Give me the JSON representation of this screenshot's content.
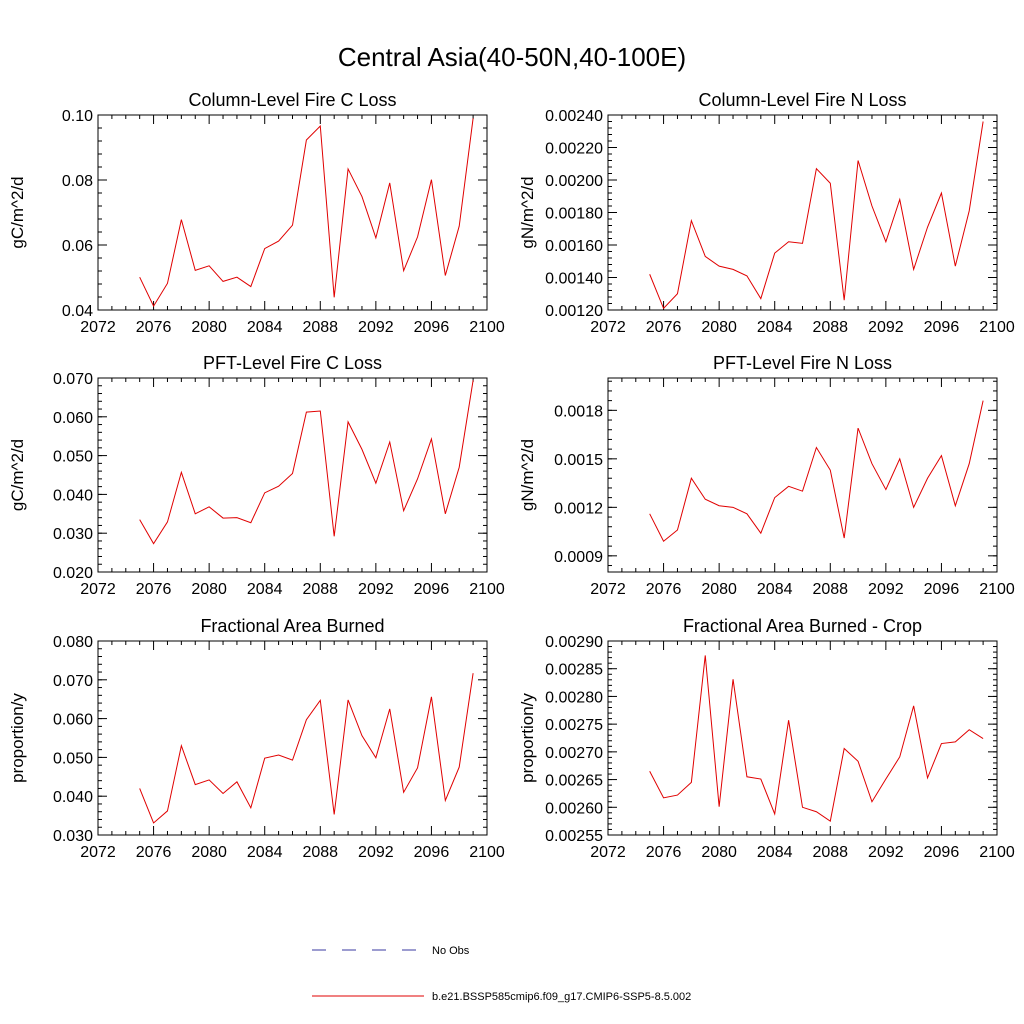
{
  "figure": {
    "title": "Central Asia(40-50N,40-100E)",
    "legend": [
      {
        "label": "No Obs",
        "color": "#3a3aa0",
        "style": "dashed"
      },
      {
        "label": "b.e21.BSSP585cmip6.f09_g17.CMIP6-SSP5-8.5.002",
        "color": "#e00000",
        "style": "solid"
      }
    ]
  },
  "chart_data": [
    {
      "type": "line",
      "title": "Column-Level Fire C Loss",
      "xlabel": "",
      "ylabel": "gC/m^2/d",
      "xlim": [
        2072,
        2100
      ],
      "ylim": [
        0.04,
        0.1
      ],
      "xticks": [
        2072,
        2076,
        2080,
        2084,
        2088,
        2092,
        2096,
        2100
      ],
      "xtick_labels": [
        "2072",
        "2076",
        "2080",
        "2084",
        "2088",
        "2092",
        "2096",
        "2100"
      ],
      "yticks": [
        0.04,
        0.06,
        0.08,
        0.1
      ],
      "ytick_labels": [
        "0.04",
        "0.06",
        "0.08",
        "0.10"
      ],
      "x": [
        2075,
        2076,
        2077,
        2078,
        2079,
        2080,
        2081,
        2082,
        2083,
        2084,
        2085,
        2086,
        2087,
        2088,
        2089,
        2090,
        2091,
        2092,
        2093,
        2094,
        2095,
        2096,
        2097,
        2098,
        2099
      ],
      "series": [
        {
          "color": "#e00000",
          "values": [
            0.0501,
            0.0412,
            0.0482,
            0.0678,
            0.0522,
            0.0536,
            0.0488,
            0.0501,
            0.0472,
            0.0589,
            0.0612,
            0.0661,
            0.0923,
            0.0966,
            0.0439,
            0.0834,
            0.0749,
            0.0622,
            0.0791,
            0.0521,
            0.0625,
            0.0801,
            0.0506,
            0.0658,
            0.099
          ]
        }
      ]
    },
    {
      "type": "line",
      "title": "Column-Level Fire N Loss",
      "xlabel": "",
      "ylabel": "gN/m^2/d",
      "xlim": [
        2072,
        2100
      ],
      "ylim": [
        0.0012,
        0.0024
      ],
      "xticks": [
        2072,
        2076,
        2080,
        2084,
        2088,
        2092,
        2096,
        2100
      ],
      "xtick_labels": [
        "2072",
        "2076",
        "2080",
        "2084",
        "2088",
        "2092",
        "2096",
        "2100"
      ],
      "yticks": [
        0.0012,
        0.0014,
        0.0016,
        0.0018,
        0.002,
        0.0022,
        0.0024
      ],
      "ytick_labels": [
        "0.00120",
        "0.00140",
        "0.00160",
        "0.00180",
        "0.00200",
        "0.00220",
        "0.00240"
      ],
      "x": [
        2075,
        2076,
        2077,
        2078,
        2079,
        2080,
        2081,
        2082,
        2083,
        2084,
        2085,
        2086,
        2087,
        2088,
        2089,
        2090,
        2091,
        2092,
        2093,
        2094,
        2095,
        2096,
        2097,
        2098,
        2099
      ],
      "series": [
        {
          "color": "#e00000",
          "values": [
            0.00142,
            0.00121,
            0.0013,
            0.00175,
            0.00153,
            0.00147,
            0.00145,
            0.00141,
            0.00127,
            0.00155,
            0.00162,
            0.00161,
            0.00207,
            0.00198,
            0.00126,
            0.00212,
            0.00184,
            0.00162,
            0.00188,
            0.00145,
            0.00171,
            0.00192,
            0.00147,
            0.00181,
            0.00236
          ]
        }
      ]
    },
    {
      "type": "line",
      "title": "PFT-Level Fire C Loss",
      "xlabel": "",
      "ylabel": "gC/m^2/d",
      "xlim": [
        2072,
        2100
      ],
      "ylim": [
        0.02,
        0.07
      ],
      "xticks": [
        2072,
        2076,
        2080,
        2084,
        2088,
        2092,
        2096,
        2100
      ],
      "xtick_labels": [
        "2072",
        "2076",
        "2080",
        "2084",
        "2088",
        "2092",
        "2096",
        "2100"
      ],
      "yticks": [
        0.02,
        0.03,
        0.04,
        0.05,
        0.06,
        0.07
      ],
      "ytick_labels": [
        "0.020",
        "0.030",
        "0.040",
        "0.050",
        "0.060",
        "0.070"
      ],
      "x": [
        2075,
        2076,
        2077,
        2078,
        2079,
        2080,
        2081,
        2082,
        2083,
        2084,
        2085,
        2086,
        2087,
        2088,
        2089,
        2090,
        2091,
        2092,
        2093,
        2094,
        2095,
        2096,
        2097,
        2098,
        2099
      ],
      "series": [
        {
          "color": "#e00000",
          "values": [
            0.0335,
            0.0273,
            0.0329,
            0.0457,
            0.035,
            0.0368,
            0.0339,
            0.034,
            0.0327,
            0.0404,
            0.0421,
            0.0454,
            0.0612,
            0.0615,
            0.0292,
            0.0587,
            0.0516,
            0.0429,
            0.0535,
            0.0358,
            0.044,
            0.0543,
            0.035,
            0.047,
            0.0694
          ]
        }
      ]
    },
    {
      "type": "line",
      "title": "PFT-Level Fire N Loss",
      "xlabel": "",
      "ylabel": "gN/m^2/d",
      "xlim": [
        2072,
        2100
      ],
      "ylim": [
        0.0008,
        0.002
      ],
      "xticks": [
        2072,
        2076,
        2080,
        2084,
        2088,
        2092,
        2096,
        2100
      ],
      "xtick_labels": [
        "2072",
        "2076",
        "2080",
        "2084",
        "2088",
        "2092",
        "2096",
        "2100"
      ],
      "yticks": [
        0.0009,
        0.0012,
        0.0015,
        0.0018
      ],
      "ytick_labels": [
        "0.0009",
        "0.0012",
        "0.0015",
        "0.0018"
      ],
      "x": [
        2075,
        2076,
        2077,
        2078,
        2079,
        2080,
        2081,
        2082,
        2083,
        2084,
        2085,
        2086,
        2087,
        2088,
        2089,
        2090,
        2091,
        2092,
        2093,
        2094,
        2095,
        2096,
        2097,
        2098,
        2099
      ],
      "series": [
        {
          "color": "#e00000",
          "values": [
            0.00116,
            0.00099,
            0.00106,
            0.00138,
            0.00125,
            0.00121,
            0.0012,
            0.00116,
            0.00104,
            0.00126,
            0.00133,
            0.0013,
            0.00157,
            0.00143,
            0.00101,
            0.00169,
            0.00147,
            0.00131,
            0.0015,
            0.0012,
            0.00138,
            0.00152,
            0.00121,
            0.00147,
            0.00186
          ]
        }
      ]
    },
    {
      "type": "line",
      "title": "Fractional Area Burned",
      "xlabel": "",
      "ylabel": "proportion/y",
      "xlim": [
        2072,
        2100
      ],
      "ylim": [
        0.03,
        0.08
      ],
      "xticks": [
        2072,
        2076,
        2080,
        2084,
        2088,
        2092,
        2096,
        2100
      ],
      "xtick_labels": [
        "2072",
        "2076",
        "2080",
        "2084",
        "2088",
        "2092",
        "2096",
        "2100"
      ],
      "yticks": [
        0.03,
        0.04,
        0.05,
        0.06,
        0.07,
        0.08
      ],
      "ytick_labels": [
        "0.030",
        "0.040",
        "0.050",
        "0.060",
        "0.070",
        "0.080"
      ],
      "x": [
        2075,
        2076,
        2077,
        2078,
        2079,
        2080,
        2081,
        2082,
        2083,
        2084,
        2085,
        2086,
        2087,
        2088,
        2089,
        2090,
        2091,
        2092,
        2093,
        2094,
        2095,
        2096,
        2097,
        2098,
        2099
      ],
      "series": [
        {
          "color": "#e00000",
          "values": [
            0.042,
            0.0331,
            0.0362,
            0.053,
            0.043,
            0.0442,
            0.0407,
            0.0437,
            0.037,
            0.0498,
            0.0506,
            0.0493,
            0.0597,
            0.0647,
            0.0353,
            0.0648,
            0.0556,
            0.0499,
            0.0625,
            0.041,
            0.0473,
            0.0656,
            0.0389,
            0.0475,
            0.0717
          ]
        }
      ]
    },
    {
      "type": "line",
      "title": "Fractional Area Burned - Crop",
      "xlabel": "",
      "ylabel": "proportion/y",
      "xlim": [
        2072,
        2100
      ],
      "ylim": [
        0.00255,
        0.0029
      ],
      "xticks": [
        2072,
        2076,
        2080,
        2084,
        2088,
        2092,
        2096,
        2100
      ],
      "xtick_labels": [
        "2072",
        "2076",
        "2080",
        "2084",
        "2088",
        "2092",
        "2096",
        "2100"
      ],
      "yticks": [
        0.00255,
        0.0026,
        0.00265,
        0.0027,
        0.00275,
        0.0028,
        0.00285,
        0.0029
      ],
      "ytick_labels": [
        "0.00255",
        "0.00260",
        "0.00265",
        "0.00270",
        "0.00275",
        "0.00280",
        "0.00285",
        "0.00290"
      ],
      "x": [
        2075,
        2076,
        2077,
        2078,
        2079,
        2080,
        2081,
        2082,
        2083,
        2084,
        2085,
        2086,
        2087,
        2088,
        2089,
        2090,
        2091,
        2092,
        2093,
        2094,
        2095,
        2096,
        2097,
        2098,
        2099
      ],
      "series": [
        {
          "color": "#e00000",
          "values": [
            0.002665,
            0.002617,
            0.002622,
            0.002645,
            0.002874,
            0.002601,
            0.002831,
            0.002655,
            0.002651,
            0.002588,
            0.002757,
            0.0026,
            0.002592,
            0.002575,
            0.002706,
            0.002683,
            0.00261,
            0.002651,
            0.002691,
            0.002783,
            0.002653,
            0.002715,
            0.002718,
            0.00274,
            0.002724
          ]
        }
      ]
    }
  ]
}
